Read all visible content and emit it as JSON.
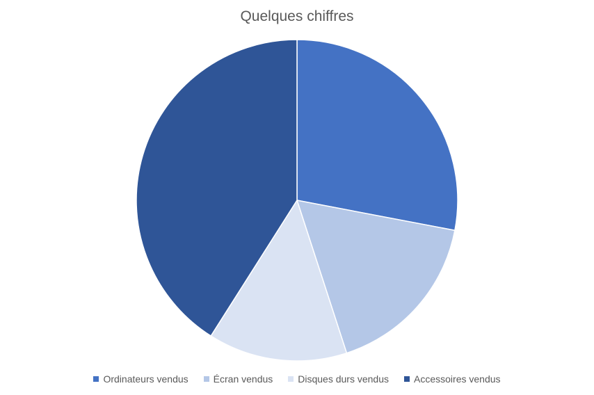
{
  "chart_data": {
    "type": "pie",
    "title": "Quelques chiffres",
    "categories": [
      "Ordinateurs vendus",
      "Écran vendus",
      "Disques durs vendus",
      "Accessoires vendus"
    ],
    "values": [
      28,
      17,
      14,
      41
    ],
    "colors": [
      "#4472C4",
      "#B4C7E7",
      "#DAE3F3",
      "#2F5597"
    ],
    "start_angle_deg": 0,
    "direction": "clockwise",
    "legend_position": "bottom"
  }
}
